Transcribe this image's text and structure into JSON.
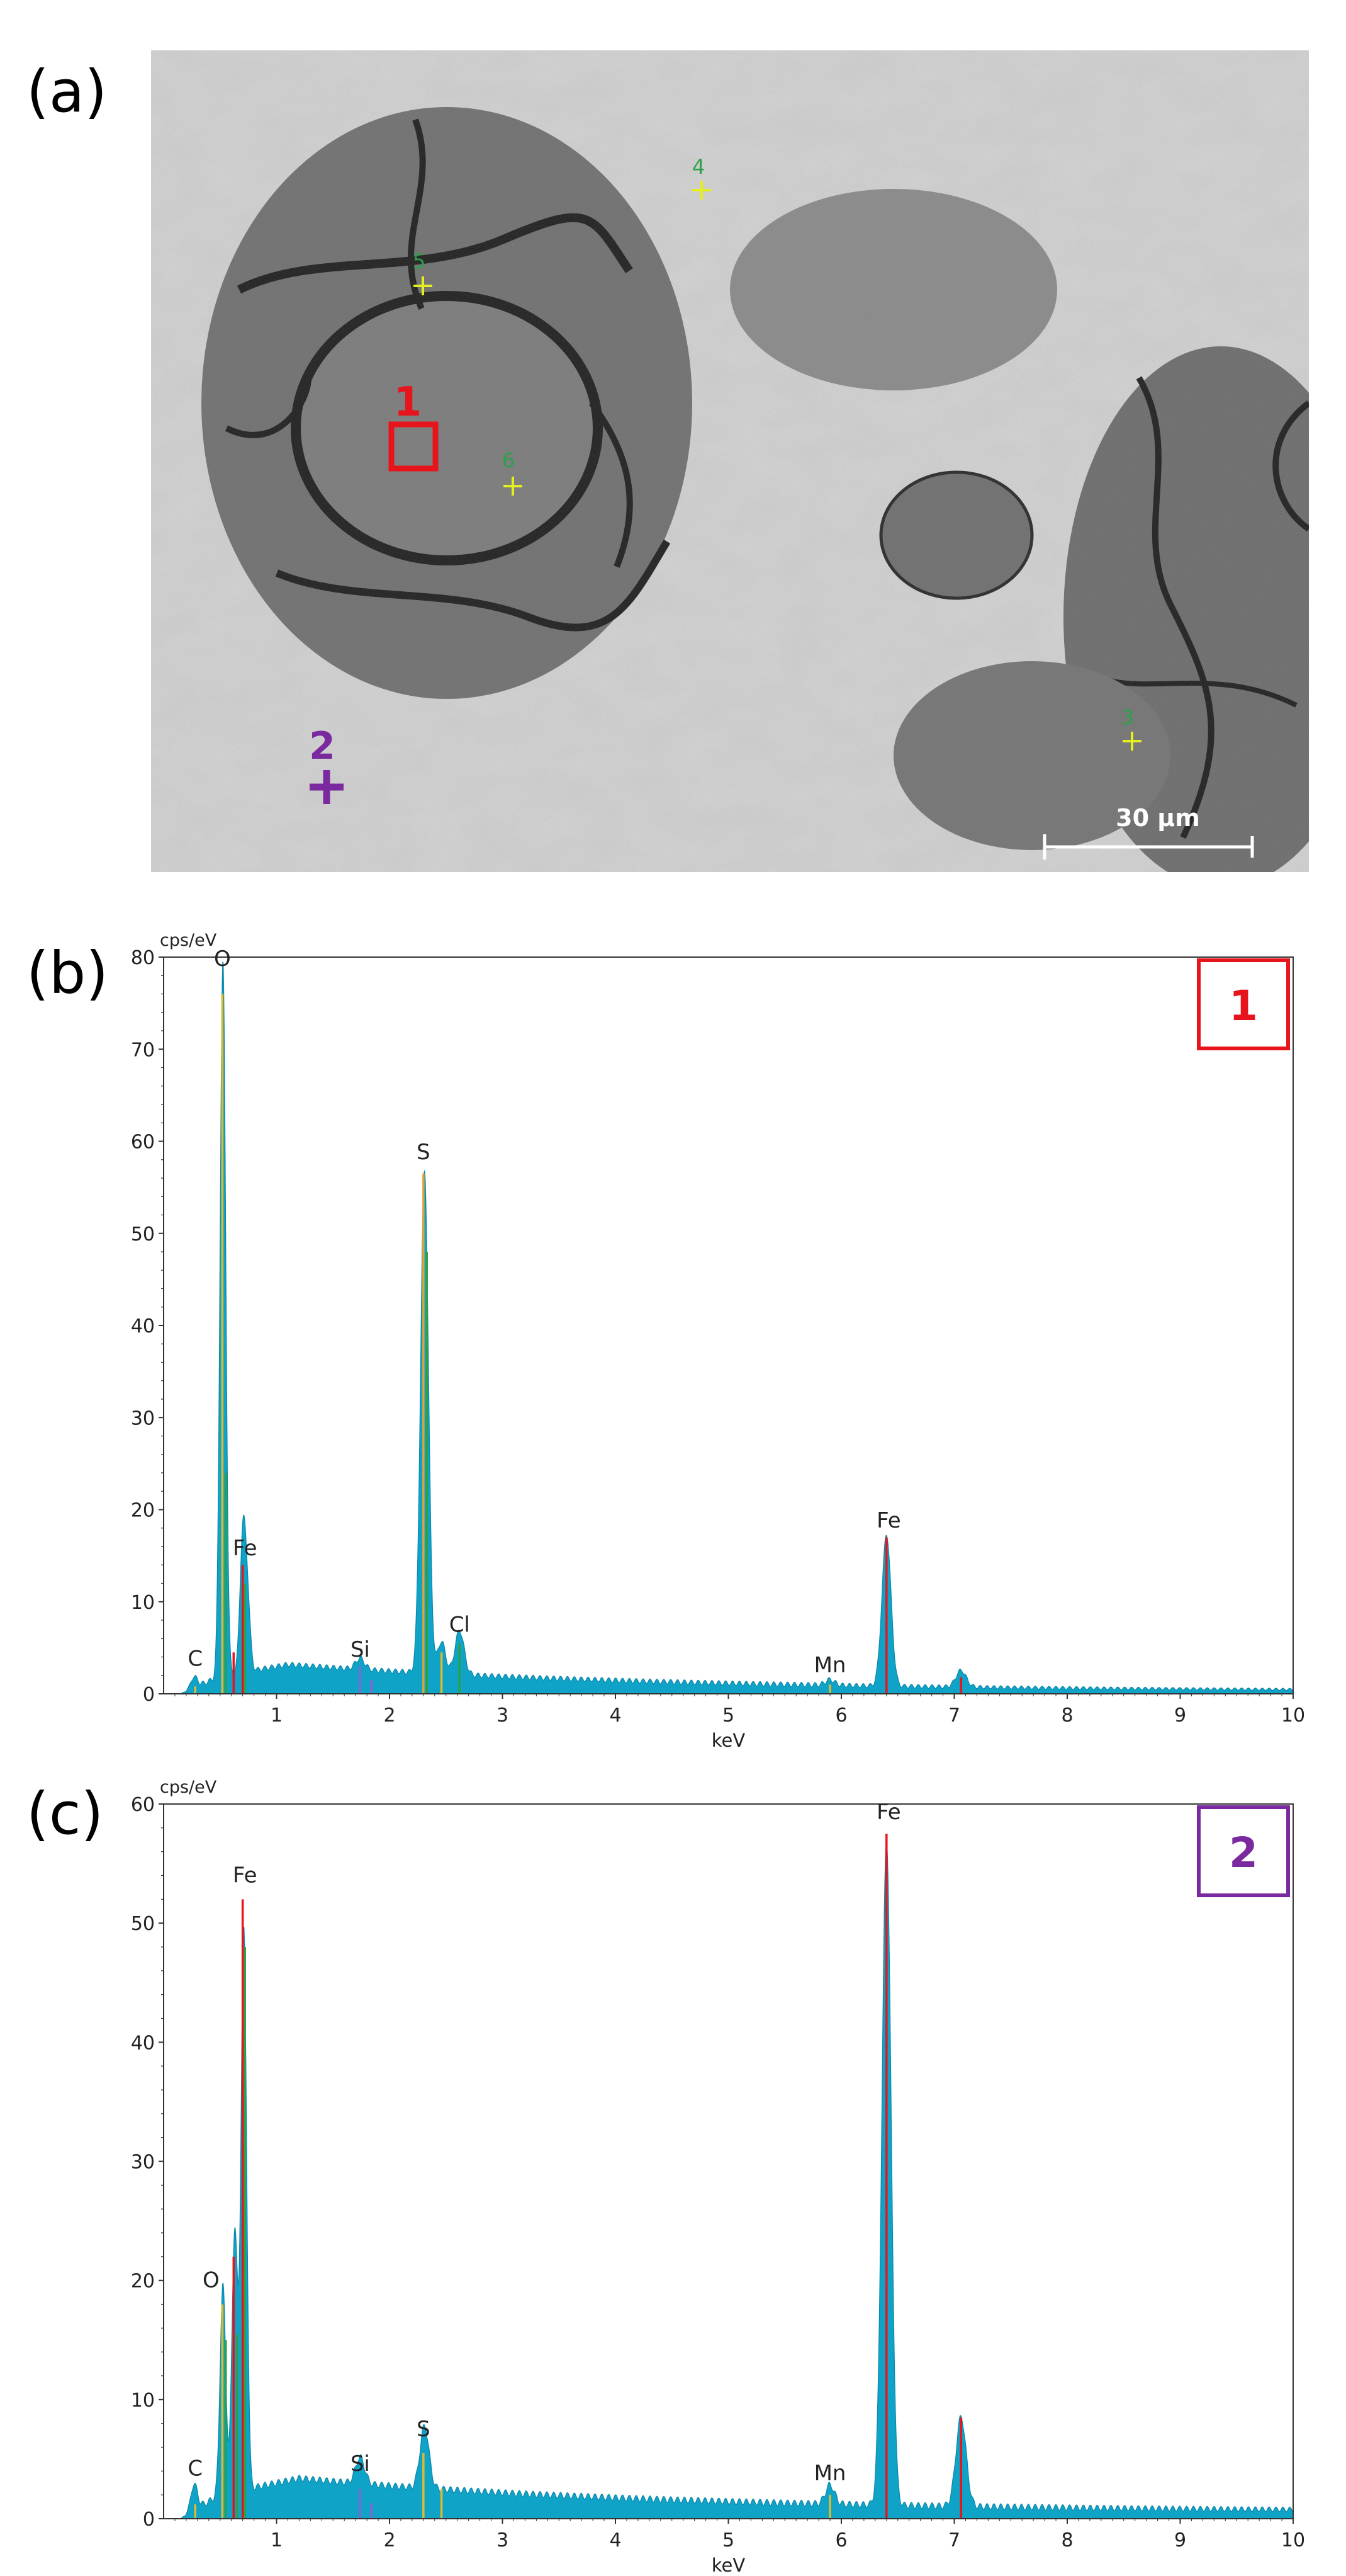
{
  "panels": {
    "a": {
      "label": "(a)",
      "scale_bar": "30 µm",
      "points": [
        {
          "id": "1",
          "kind": "square",
          "color": "#e8141c"
        },
        {
          "id": "2",
          "kind": "cross",
          "color": "#7a2a9e"
        },
        {
          "id": "3",
          "kind": "cross",
          "color": "#d6e21a"
        },
        {
          "id": "4",
          "kind": "cross",
          "color": "#d6e21a"
        },
        {
          "id": "5",
          "kind": "cross",
          "color": "#d6e21a"
        },
        {
          "id": "6",
          "kind": "cross",
          "color": "#d6e21a"
        }
      ]
    },
    "b": {
      "label": "(b)"
    },
    "c": {
      "label": "(c)"
    }
  },
  "chart_data": [
    {
      "type": "area",
      "panel": "b",
      "marker": "1",
      "marker_color": "#e8141c",
      "unit_label": "cps/eV",
      "xlabel": "keV",
      "xlim": [
        0,
        10
      ],
      "ylim": [
        0,
        80
      ],
      "xticks": [
        1,
        2,
        3,
        4,
        5,
        6,
        7,
        8,
        9,
        10
      ],
      "yticks": [
        0,
        10,
        20,
        30,
        40,
        50,
        60,
        70,
        80
      ],
      "fill_color": "#0fa3c8",
      "background": {
        "start": 0.15,
        "rise_to": 0.5,
        "peak_level": 3.2,
        "peak_at": 1.1,
        "end_level": 0.3
      },
      "peaks": [
        {
          "x": 0.27,
          "h": 1.2,
          "w": 0.03
        },
        {
          "x": 0.525,
          "h": 77.5,
          "w": 0.025
        },
        {
          "x": 0.7,
          "h": 14.0,
          "w": 0.025
        },
        {
          "x": 0.74,
          "h": 8.0,
          "w": 0.025
        },
        {
          "x": 1.74,
          "h": 1.2,
          "w": 0.04
        },
        {
          "x": 2.31,
          "h": 54.5,
          "w": 0.035
        },
        {
          "x": 2.46,
          "h": 3.5,
          "w": 0.035
        },
        {
          "x": 2.62,
          "h": 4.8,
          "w": 0.04
        },
        {
          "x": 5.9,
          "h": 0.6,
          "w": 0.04
        },
        {
          "x": 6.4,
          "h": 16.5,
          "w": 0.04
        },
        {
          "x": 7.06,
          "h": 1.8,
          "w": 0.045
        }
      ],
      "element_lines": [
        {
          "x": 0.28,
          "h": 0.8,
          "color": "#e0ba2c"
        },
        {
          "x": 0.52,
          "h": 76.0,
          "color": "#e0ba2c"
        },
        {
          "x": 0.55,
          "h": 24.0,
          "color": "#2ca14a"
        },
        {
          "x": 0.62,
          "h": 4.5,
          "color": "#e8141c"
        },
        {
          "x": 0.7,
          "h": 14.0,
          "color": "#e8141c"
        },
        {
          "x": 0.72,
          "h": 12.0,
          "color": "#2ca14a"
        },
        {
          "x": 1.74,
          "h": 3.0,
          "color": "#8a63d2"
        },
        {
          "x": 1.84,
          "h": 1.5,
          "color": "#8a63d2"
        },
        {
          "x": 2.3,
          "h": 56.5,
          "color": "#e0a23a"
        },
        {
          "x": 2.33,
          "h": 48.0,
          "color": "#2ca14a"
        },
        {
          "x": 2.46,
          "h": 4.5,
          "color": "#e0ba2c"
        },
        {
          "x": 2.62,
          "h": 5.5,
          "color": "#2ca14a"
        },
        {
          "x": 5.9,
          "h": 1.0,
          "color": "#e0ba2c"
        },
        {
          "x": 6.4,
          "h": 17.0,
          "color": "#e8141c"
        },
        {
          "x": 7.06,
          "h": 1.8,
          "color": "#e8141c"
        }
      ],
      "labels": [
        {
          "text": "O",
          "x": 0.52,
          "y": 78.5
        },
        {
          "text": "S",
          "x": 2.3,
          "y": 57.5
        },
        {
          "text": "Fe",
          "x": 0.72,
          "y": 14.5
        },
        {
          "text": "Fe",
          "x": 6.42,
          "y": 17.5
        },
        {
          "text": "Si",
          "x": 1.74,
          "y": 3.5
        },
        {
          "text": "Cl",
          "x": 2.62,
          "y": 6.2
        },
        {
          "text": "Mn",
          "x": 5.9,
          "y": 1.8
        },
        {
          "text": "C",
          "x": 0.28,
          "y": 2.5
        }
      ]
    },
    {
      "type": "area",
      "panel": "c",
      "marker": "2",
      "marker_color": "#7a2a9e",
      "unit_label": "cps/eV",
      "xlabel": "keV",
      "xlim": [
        0,
        10
      ],
      "ylim": [
        0,
        60
      ],
      "xticks": [
        1,
        2,
        3,
        4,
        5,
        6,
        7,
        8,
        9,
        10
      ],
      "yticks": [
        0,
        10,
        20,
        30,
        40,
        50,
        60
      ],
      "fill_color": "#0fa3c8",
      "background": {
        "start": 0.15,
        "rise_to": 0.5,
        "peak_level": 3.4,
        "peak_at": 1.2,
        "end_level": 0.6
      },
      "peaks": [
        {
          "x": 0.27,
          "h": 2.2,
          "w": 0.03
        },
        {
          "x": 0.525,
          "h": 17.5,
          "w": 0.025
        },
        {
          "x": 0.63,
          "h": 22.0,
          "w": 0.025
        },
        {
          "x": 0.71,
          "h": 47.0,
          "w": 0.025
        },
        {
          "x": 1.74,
          "h": 2.2,
          "w": 0.04
        },
        {
          "x": 2.31,
          "h": 5.2,
          "w": 0.04
        },
        {
          "x": 5.9,
          "h": 1.6,
          "w": 0.04
        },
        {
          "x": 6.4,
          "h": 56.0,
          "w": 0.04
        },
        {
          "x": 7.06,
          "h": 7.5,
          "w": 0.045
        }
      ],
      "element_lines": [
        {
          "x": 0.28,
          "h": 1.2,
          "color": "#e0ba2c"
        },
        {
          "x": 0.52,
          "h": 18.0,
          "color": "#e0ba2c"
        },
        {
          "x": 0.55,
          "h": 15.0,
          "color": "#2ca14a"
        },
        {
          "x": 0.62,
          "h": 22.0,
          "color": "#e8141c"
        },
        {
          "x": 0.65,
          "h": 15.5,
          "color": "#2ca14a"
        },
        {
          "x": 0.7,
          "h": 52.0,
          "color": "#e8141c"
        },
        {
          "x": 0.72,
          "h": 48.0,
          "color": "#2ca14a"
        },
        {
          "x": 1.74,
          "h": 2.5,
          "color": "#8a63d2"
        },
        {
          "x": 1.84,
          "h": 1.3,
          "color": "#8a63d2"
        },
        {
          "x": 2.3,
          "h": 5.5,
          "color": "#e0ba2c"
        },
        {
          "x": 2.46,
          "h": 2.5,
          "color": "#e0ba2c"
        },
        {
          "x": 5.9,
          "h": 2.0,
          "color": "#e0ba2c"
        },
        {
          "x": 6.4,
          "h": 57.5,
          "color": "#e8141c"
        },
        {
          "x": 7.06,
          "h": 8.5,
          "color": "#e8141c"
        }
      ],
      "labels": [
        {
          "text": "Fe",
          "x": 0.72,
          "y": 53.0
        },
        {
          "text": "Fe",
          "x": 6.42,
          "y": 58.3
        },
        {
          "text": "O",
          "x": 0.42,
          "y": 19.0
        },
        {
          "text": "S",
          "x": 2.3,
          "y": 6.5
        },
        {
          "text": "Si",
          "x": 1.74,
          "y": 3.6
        },
        {
          "text": "Mn",
          "x": 5.9,
          "y": 2.8
        },
        {
          "text": "C",
          "x": 0.28,
          "y": 3.2
        }
      ]
    }
  ]
}
